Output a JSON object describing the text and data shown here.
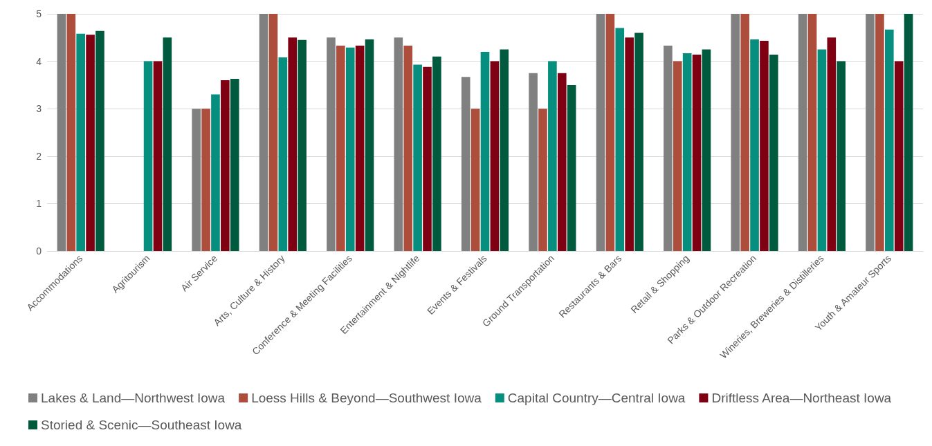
{
  "chart_data": {
    "type": "bar",
    "categories": [
      "Accommodations",
      "Agritourism",
      "Air Service",
      "Arts, Culture & History",
      "Conference & Meeting Facilities",
      "Entertainment & Nightlife",
      "Events & Festivals",
      "Ground Transportation",
      "Restaurants & Bars",
      "Retail & Shopping",
      "Parks & Outdoor Recreation",
      "Wineries, Breweries & Distilleries",
      "Youth & Amateur Sports"
    ],
    "series": [
      {
        "name": "Lakes & Land—Northwest Iowa",
        "color": "#808080",
        "values": [
          5,
          null,
          3,
          5,
          4.5,
          4.5,
          3.67,
          3.75,
          5,
          4.33,
          5,
          5,
          5
        ]
      },
      {
        "name": "Loess Hills & Beyond—Southwest Iowa",
        "color": "#ad4d3c",
        "values": [
          5,
          null,
          3,
          5,
          4.33,
          4.33,
          3,
          3,
          5,
          4,
          5,
          5,
          5
        ]
      },
      {
        "name": "Capital Country—Central Iowa",
        "color": "#068e7e",
        "values": [
          4.58,
          4,
          3.3,
          4.08,
          4.29,
          3.93,
          4.2,
          4,
          4.7,
          4.17,
          4.46,
          4.25,
          4.67
        ]
      },
      {
        "name": "Driftless Area—Northeast Iowa",
        "color": "#7f0013",
        "values": [
          4.56,
          4,
          3.6,
          4.5,
          4.33,
          3.88,
          4,
          3.75,
          4.5,
          4.14,
          4.43,
          4.5,
          4
        ]
      },
      {
        "name": "Storied & Scenic—Southeast Iowa",
        "color": "#005b3e",
        "values": [
          4.64,
          4.5,
          3.63,
          4.45,
          4.46,
          4.1,
          4.25,
          3.5,
          4.6,
          4.25,
          4.14,
          4,
          5
        ]
      }
    ],
    "ylim": [
      0,
      5
    ],
    "yticks": [
      0,
      1,
      2,
      3,
      4,
      5
    ],
    "grid": "y",
    "legend": "bottom"
  }
}
